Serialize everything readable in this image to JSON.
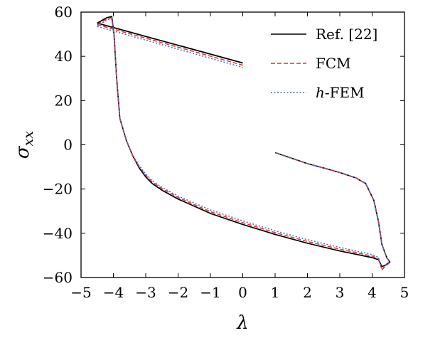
{
  "chart_data": {
    "type": "line",
    "xlabel": "λ",
    "ylabel": "σxx",
    "ylabel_main": "σ",
    "ylabel_sub": "xx",
    "xlim": [
      -5,
      5
    ],
    "ylim": [
      -60,
      60
    ],
    "xticks": [
      -5,
      -4,
      -3,
      -2,
      -1,
      0,
      1,
      2,
      3,
      4,
      5
    ],
    "yticks": [
      -60,
      -40,
      -20,
      0,
      20,
      40,
      60
    ],
    "xtick_labels": [
      "−5",
      "−4",
      "−3",
      "−2",
      "−1",
      "0",
      "1",
      "2",
      "3",
      "4",
      "5"
    ],
    "ytick_labels": [
      "−60",
      "−40",
      "−20",
      "0",
      "20",
      "40",
      "60"
    ],
    "grid": false,
    "legend_position": "top-right",
    "series": [
      {
        "name": "Ref. [22]",
        "color": "#000000",
        "style": "solid",
        "segments": [
          [
            [
              -4.5,
              55
            ],
            [
              -4.2,
              57.5
            ],
            [
              -4.05,
              58
            ],
            [
              -3.98,
              50
            ],
            [
              -3.9,
              30
            ],
            [
              -3.8,
              12
            ],
            [
              -3.6,
              2
            ],
            [
              -3.4,
              -5
            ],
            [
              -3.2,
              -10.5
            ],
            [
              -3.0,
              -14.5
            ],
            [
              -2.8,
              -17.5
            ],
            [
              -2.5,
              -20.5
            ],
            [
              -2.0,
              -24.5
            ],
            [
              -1.0,
              -31
            ],
            [
              0.0,
              -36
            ],
            [
              1.0,
              -40.5
            ],
            [
              2.0,
              -44.5
            ],
            [
              3.0,
              -48
            ],
            [
              4.0,
              -51
            ],
            [
              4.2,
              -52
            ],
            [
              4.3,
              -55
            ],
            [
              4.4,
              -54.5
            ],
            [
              4.55,
              -53
            ],
            [
              4.45,
              -51
            ],
            [
              4.3,
              -45
            ],
            [
              4.2,
              -35
            ],
            [
              4.05,
              -25
            ],
            [
              3.8,
              -17.5
            ],
            [
              3.5,
              -15
            ],
            [
              3.0,
              -12.5
            ],
            [
              2.5,
              -10.5
            ],
            [
              2.0,
              -8.5
            ],
            [
              1.5,
              -6
            ],
            [
              1.0,
              -3.5
            ]
          ],
          [
            [
              -4.5,
              55
            ],
            [
              0.0,
              37
            ]
          ]
        ]
      },
      {
        "name": "FCM",
        "color": "#e03030",
        "style": "dashed",
        "segments": [
          [
            [
              -4.5,
              54.3
            ],
            [
              -4.2,
              57
            ],
            [
              -4.05,
              57.5
            ],
            [
              -3.98,
              50
            ],
            [
              -3.9,
              30
            ],
            [
              -3.8,
              12
            ],
            [
              -3.6,
              2
            ],
            [
              -3.4,
              -5
            ],
            [
              -3.2,
              -10
            ],
            [
              -3.0,
              -13.8
            ],
            [
              -2.8,
              -16.8
            ],
            [
              -2.5,
              -19.8
            ],
            [
              -2.0,
              -23.8
            ],
            [
              -1.0,
              -30.2
            ],
            [
              0.0,
              -35.2
            ],
            [
              1.0,
              -39.7
            ],
            [
              2.0,
              -43.7
            ],
            [
              3.0,
              -47.2
            ],
            [
              4.0,
              -50.3
            ],
            [
              4.2,
              -51.5
            ],
            [
              4.3,
              -56.5
            ],
            [
              4.4,
              -55
            ],
            [
              4.55,
              -53.2
            ],
            [
              4.45,
              -51
            ],
            [
              4.3,
              -45
            ],
            [
              4.2,
              -35
            ],
            [
              4.05,
              -25
            ],
            [
              3.8,
              -17.5
            ],
            [
              3.5,
              -15
            ],
            [
              3.0,
              -12.5
            ],
            [
              2.5,
              -10.5
            ],
            [
              2.0,
              -8.5
            ],
            [
              1.5,
              -6
            ],
            [
              1.0,
              -3.5
            ]
          ],
          [
            [
              -4.5,
              54.3
            ],
            [
              0.0,
              36
            ]
          ]
        ]
      },
      {
        "name": "h-FEM",
        "name_italic": "h",
        "name_rest": "-FEM",
        "color": "#4a6fb5",
        "style": "dotted",
        "segments": [
          [
            [
              -4.5,
              53.5
            ],
            [
              -4.2,
              56.5
            ],
            [
              -4.05,
              57
            ],
            [
              -3.98,
              50
            ],
            [
              -3.9,
              30
            ],
            [
              -3.8,
              12
            ],
            [
              -3.6,
              2
            ],
            [
              -3.4,
              -4.6
            ],
            [
              -3.2,
              -9.5
            ],
            [
              -3.0,
              -13.2
            ],
            [
              -2.8,
              -16.2
            ],
            [
              -2.5,
              -19.2
            ],
            [
              -2.0,
              -23.2
            ],
            [
              -1.0,
              -29.4
            ],
            [
              0.0,
              -34.4
            ],
            [
              1.0,
              -38.9
            ],
            [
              2.0,
              -42.9
            ],
            [
              3.0,
              -46.4
            ],
            [
              4.0,
              -49.6
            ],
            [
              4.2,
              -51
            ],
            [
              4.3,
              -56
            ],
            [
              4.4,
              -54.5
            ],
            [
              4.55,
              -52.6
            ],
            [
              4.45,
              -51
            ],
            [
              4.3,
              -45
            ],
            [
              4.2,
              -35
            ],
            [
              4.05,
              -25
            ],
            [
              3.8,
              -17.5
            ],
            [
              3.5,
              -15
            ],
            [
              3.0,
              -12.5
            ],
            [
              2.5,
              -10.5
            ],
            [
              2.0,
              -8.5
            ],
            [
              1.5,
              -6
            ],
            [
              1.0,
              -3.5
            ]
          ],
          [
            [
              -4.5,
              53.5
            ],
            [
              0.0,
              35
            ]
          ]
        ]
      }
    ]
  }
}
